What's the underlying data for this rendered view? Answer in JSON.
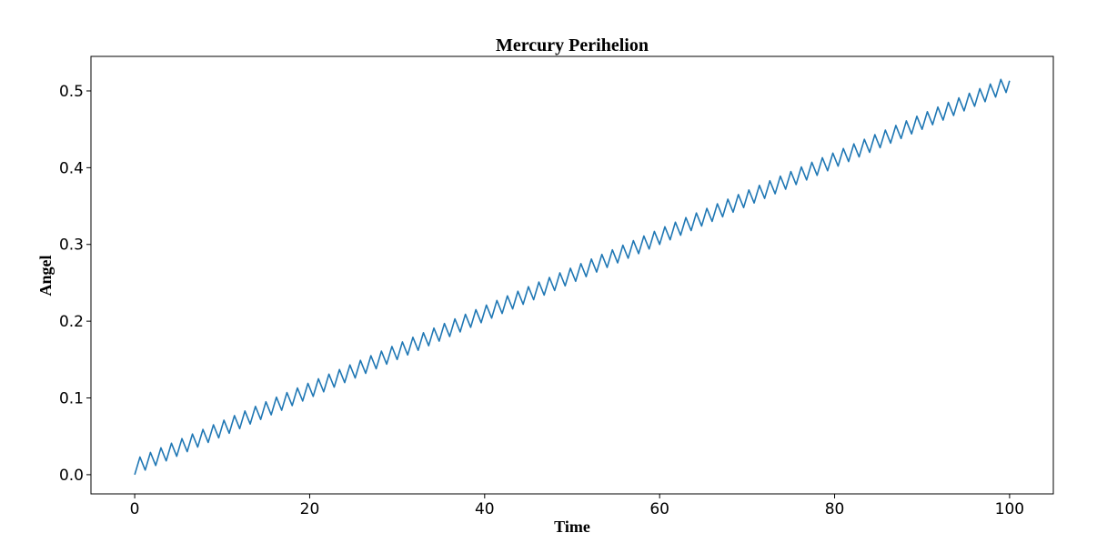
{
  "chart_data": {
    "type": "line",
    "title": "Mercury Perihelion",
    "xlabel": "Time",
    "ylabel": "Angel",
    "xlim": [
      -5,
      105
    ],
    "ylim": [
      -0.025,
      0.545
    ],
    "xticks": [
      0,
      20,
      40,
      60,
      80,
      100
    ],
    "xtick_labels": [
      "0",
      "20",
      "40",
      "60",
      "80",
      "100"
    ],
    "yticks": [
      0.0,
      0.1,
      0.2,
      0.3,
      0.4,
      0.5
    ],
    "ytick_labels": [
      "0.0",
      "0.1",
      "0.2",
      "0.3",
      "0.4",
      "0.5"
    ],
    "grid": false,
    "legend": "none",
    "series": [
      {
        "color": "#1f77b4",
        "trend_slope": 0.005,
        "oscillation_period": 1.2,
        "oscillation_amplitude": 0.02,
        "x": [
          0,
          100
        ],
        "y": [
          0.0,
          0.5
        ]
      }
    ]
  }
}
